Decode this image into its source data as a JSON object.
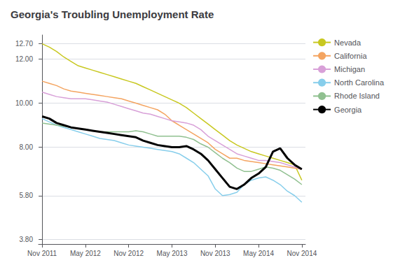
{
  "chart_data": {
    "type": "line",
    "title": "Georgia's Troubling Unemployment Rate",
    "x": [
      0,
      1,
      2,
      3,
      4,
      5,
      6,
      7,
      8,
      9,
      10,
      11,
      12,
      13,
      14,
      15,
      16,
      17,
      18,
      19,
      20,
      21,
      22,
      23,
      24,
      25,
      26,
      27,
      28,
      29,
      30,
      31,
      32,
      33,
      34,
      35,
      36
    ],
    "xlim": [
      -0.5,
      36.5
    ],
    "xticks": [
      {
        "value": 0,
        "label": "Nov 2011"
      },
      {
        "value": 6,
        "label": "May 2012"
      },
      {
        "value": 12,
        "label": "Nov 2012"
      },
      {
        "value": 18,
        "label": "May 2013"
      },
      {
        "value": 24,
        "label": "Nov 2013"
      },
      {
        "value": 30,
        "label": "May 2014"
      },
      {
        "value": 36,
        "label": "Nov 2014"
      }
    ],
    "ylim": [
      3.6,
      13.1
    ],
    "yticks": [
      {
        "value": 3.8,
        "label": "3.80"
      },
      {
        "value": 5.8,
        "label": "5.80"
      },
      {
        "value": 8,
        "label": "8.00"
      },
      {
        "value": 10,
        "label": "10.00"
      },
      {
        "value": 12,
        "label": "12.00"
      },
      {
        "value": 12.7,
        "label": "12.70"
      }
    ],
    "grid": true,
    "legend": "right",
    "series": [
      {
        "name": "Nevada",
        "color": "#c8c820",
        "values": [
          12.7,
          12.55,
          12.35,
          12.1,
          11.9,
          11.7,
          11.6,
          11.5,
          11.4,
          11.3,
          11.2,
          11.1,
          11.0,
          10.9,
          10.75,
          10.6,
          10.45,
          10.3,
          10.15,
          10.0,
          9.8,
          9.55,
          9.3,
          9.05,
          8.8,
          8.55,
          8.3,
          8.1,
          7.95,
          7.8,
          7.7,
          7.6,
          7.5,
          7.4,
          7.3,
          7.2,
          6.5
        ]
      },
      {
        "name": "California",
        "color": "#f4a460",
        "values": [
          11.0,
          10.9,
          10.8,
          10.65,
          10.55,
          10.5,
          10.45,
          10.4,
          10.35,
          10.3,
          10.25,
          10.2,
          10.1,
          10.0,
          9.9,
          9.8,
          9.7,
          9.5,
          9.2,
          9.0,
          8.8,
          8.6,
          8.4,
          8.2,
          7.9,
          7.7,
          7.5,
          7.5,
          7.4,
          7.35,
          7.3,
          7.25,
          7.2,
          7.15,
          7.1,
          7.05,
          7.0
        ]
      },
      {
        "name": "Michigan",
        "color": "#d8a0d8",
        "values": [
          10.5,
          10.4,
          10.3,
          10.25,
          10.2,
          10.2,
          10.2,
          10.15,
          10.1,
          10.05,
          9.95,
          9.85,
          9.75,
          9.65,
          9.55,
          9.5,
          9.4,
          9.3,
          9.2,
          9.15,
          9.1,
          9.0,
          8.8,
          8.5,
          8.3,
          8.1,
          7.9,
          7.7,
          7.6,
          7.5,
          7.4,
          7.4,
          7.35,
          7.3,
          7.2,
          7.1,
          7.0
        ]
      },
      {
        "name": "North Carolina",
        "color": "#87ceeb",
        "values": [
          9.3,
          9.15,
          9.0,
          8.9,
          8.8,
          8.7,
          8.6,
          8.5,
          8.4,
          8.35,
          8.3,
          8.2,
          8.1,
          8.05,
          8.0,
          7.95,
          7.9,
          7.85,
          7.8,
          7.7,
          7.5,
          7.3,
          7.0,
          6.7,
          6.1,
          5.8,
          5.85,
          5.95,
          6.3,
          6.5,
          6.6,
          6.65,
          6.5,
          6.3,
          6.0,
          5.8,
          5.5
        ]
      },
      {
        "name": "Rhode Island",
        "color": "#90c090",
        "values": [
          9.1,
          9.05,
          9.0,
          8.95,
          8.9,
          8.85,
          8.8,
          8.75,
          8.7,
          8.7,
          8.7,
          8.7,
          8.7,
          8.75,
          8.7,
          8.6,
          8.5,
          8.5,
          8.5,
          8.5,
          8.45,
          8.35,
          8.15,
          8.0,
          7.75,
          7.5,
          7.3,
          7.05,
          6.9,
          6.9,
          7.0,
          7.1,
          7.05,
          6.95,
          6.75,
          6.55,
          6.3
        ]
      },
      {
        "name": "Georgia",
        "color": "#000000",
        "values": [
          9.4,
          9.3,
          9.1,
          9.0,
          8.9,
          8.85,
          8.8,
          8.75,
          8.7,
          8.65,
          8.6,
          8.55,
          8.5,
          8.45,
          8.3,
          8.2,
          8.1,
          8.05,
          8.0,
          8.0,
          8.05,
          7.9,
          7.7,
          7.4,
          7.0,
          6.6,
          6.2,
          6.1,
          6.3,
          6.6,
          6.8,
          7.1,
          7.8,
          7.95,
          7.5,
          7.2,
          7.0
        ]
      }
    ]
  }
}
